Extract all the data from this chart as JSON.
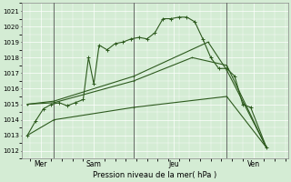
{
  "xlabel": "Pression niveau de la mer( hPa )",
  "ylim": [
    1011.5,
    1021.5
  ],
  "yticks": [
    1012,
    1013,
    1014,
    1015,
    1016,
    1017,
    1018,
    1019,
    1020,
    1021
  ],
  "xlim": [
    -0.2,
    9.8
  ],
  "day_positions": [
    0.5,
    2.5,
    5.5,
    8.5
  ],
  "day_labels": [
    "Mer",
    "Sam",
    "Jeu",
    "Ven"
  ],
  "vlines": [
    1.0,
    4.0,
    7.5
  ],
  "bg_color": "#d4ecd4",
  "grid_color": "#ffffff",
  "line_color": "#2d5a1e",
  "line1_x": [
    0.0,
    0.3,
    0.6,
    0.9,
    1.2,
    1.5,
    1.8,
    2.1,
    2.3,
    2.5,
    2.7,
    3.0,
    3.3,
    3.6,
    3.9,
    4.2,
    4.5,
    4.8,
    5.1,
    5.4,
    5.7,
    6.0,
    6.3,
    6.6,
    6.9,
    7.2,
    7.5,
    7.8,
    8.1,
    8.4,
    9.0
  ],
  "line1_y": [
    1013.0,
    1013.9,
    1014.7,
    1015.0,
    1015.1,
    1014.9,
    1015.1,
    1015.3,
    1018.0,
    1016.3,
    1018.8,
    1018.5,
    1018.9,
    1019.0,
    1019.2,
    1019.3,
    1019.2,
    1019.6,
    1020.5,
    1020.5,
    1020.6,
    1020.6,
    1020.3,
    1019.2,
    1018.0,
    1017.3,
    1017.3,
    1016.8,
    1015.0,
    1014.8,
    1012.2
  ],
  "line2_x": [
    0.0,
    1.0,
    4.0,
    6.8,
    7.5,
    9.0
  ],
  "line2_y": [
    1015.0,
    1015.2,
    1016.8,
    1019.0,
    1017.2,
    1012.2
  ],
  "line3_x": [
    0.0,
    1.0,
    4.0,
    6.2,
    7.5,
    9.0
  ],
  "line3_y": [
    1015.0,
    1015.1,
    1016.5,
    1018.0,
    1017.5,
    1012.2
  ],
  "line4_x": [
    0.0,
    1.0,
    4.0,
    7.5,
    9.0
  ],
  "line4_y": [
    1013.0,
    1014.0,
    1014.8,
    1015.5,
    1012.2
  ]
}
